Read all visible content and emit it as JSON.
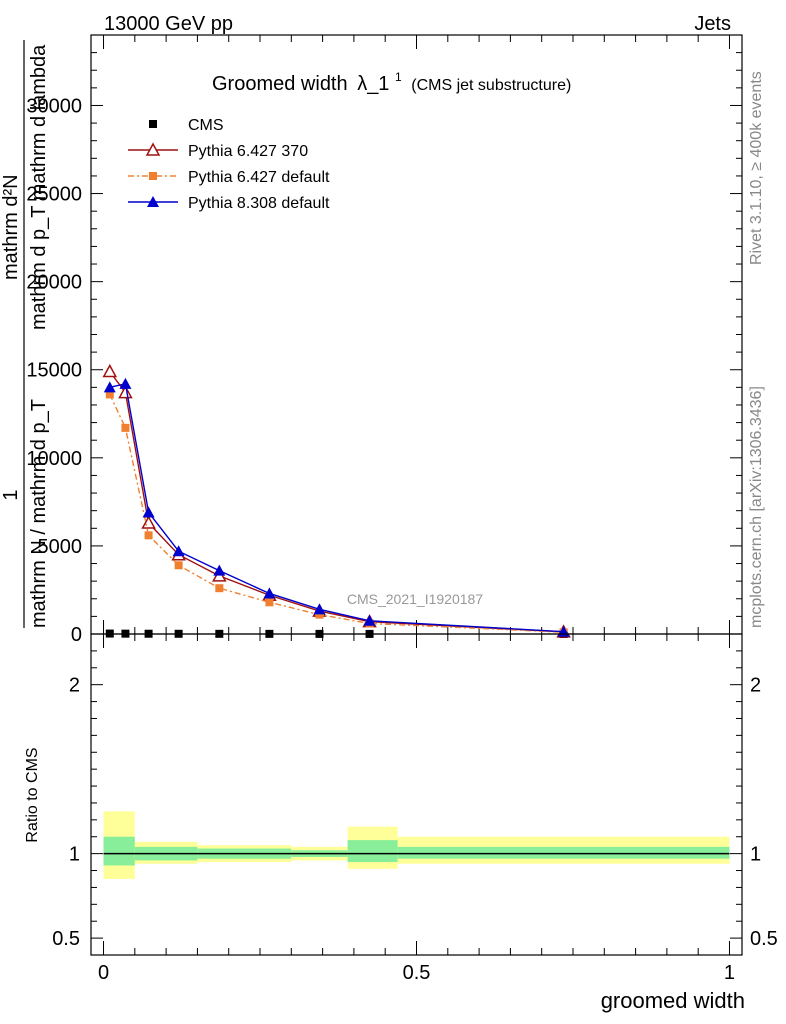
{
  "header": {
    "left": "13000 GeV pp",
    "right": "Jets"
  },
  "side_text": {
    "rivet": "Rivet 3.1.10, ≥ 400k events",
    "mcplots": "mcplots.cern.ch [arXiv:1306.3436]"
  },
  "watermark": "CMS_2021_I1920187",
  "colors": {
    "cms": "#000000",
    "py6_370": "#a01010",
    "py6_default": "#f08030",
    "py8_default": "#0000cc",
    "band_outer": "#ffff99",
    "band_inner": "#88ee99"
  },
  "chart_data": [
    {
      "type": "line",
      "title": "Groomed width λ_1¹",
      "title_main": "Groomed width",
      "title_symbol": "λ_1",
      "title_sup": "1",
      "title_note": "(CMS jet substructure)",
      "ylabel_numerator": "mathrm d²N",
      "ylabel_denominator": "mathrm d p_T mathrm d lambda",
      "ylabel_prefix": "1",
      "ylabel_norm": "mathrm N / mathrm d p_T",
      "xlim": [
        -0.02,
        1.02
      ],
      "ylim": [
        0,
        34000
      ],
      "yticks": [
        {
          "v": 0,
          "label": "0"
        },
        {
          "v": 5000,
          "label": "5000"
        },
        {
          "v": 10000,
          "label": "10000"
        },
        {
          "v": 15000,
          "label": "15000"
        },
        {
          "v": 20000,
          "label": "20000"
        },
        {
          "v": 25000,
          "label": "25000"
        },
        {
          "v": 30000,
          "label": "30000"
        }
      ],
      "x": [
        0.01,
        0.035,
        0.072,
        0.12,
        0.185,
        0.265,
        0.345,
        0.425,
        0.735
      ],
      "series": [
        {
          "name": "CMS",
          "key": "cms",
          "marker": "square",
          "values": [
            25,
            20,
            15,
            12,
            10,
            8,
            6,
            5,
            1
          ]
        },
        {
          "name": "Pythia 6.427 370",
          "key": "py6_370",
          "marker": "open-triangle",
          "values": [
            14900,
            13700,
            6300,
            4500,
            3300,
            2200,
            1300,
            700,
            120
          ]
        },
        {
          "name": "Pythia 6.427 default",
          "key": "py6_default",
          "marker": "filled-square",
          "values": [
            13600,
            11700,
            5600,
            3900,
            2600,
            1800,
            1100,
            600,
            100
          ]
        },
        {
          "name": "Pythia 8.308 default",
          "key": "py8_default",
          "marker": "filled-triangle",
          "values": [
            14000,
            14200,
            6900,
            4700,
            3600,
            2300,
            1400,
            750,
            130
          ]
        }
      ],
      "legend_position": "top-left"
    },
    {
      "type": "area",
      "ylabel": "Ratio to CMS",
      "xlabel": "groomed width",
      "xlim": [
        -0.02,
        1.02
      ],
      "ylim": [
        0.4,
        2.3
      ],
      "yticks": [
        {
          "v": 0.5,
          "label": "0.5"
        },
        {
          "v": 1,
          "label": "1"
        },
        {
          "v": 2,
          "label": "2"
        }
      ],
      "xticks": [
        {
          "v": 0,
          "label": "0"
        },
        {
          "v": 0.5,
          "label": "0.5"
        },
        {
          "v": 1,
          "label": "1"
        }
      ],
      "reference": 1,
      "bands": [
        {
          "x0": 0.0,
          "x1": 0.05,
          "outer": [
            0.85,
            1.25
          ],
          "inner": [
            0.93,
            1.1
          ]
        },
        {
          "x0": 0.05,
          "x1": 0.15,
          "outer": [
            0.94,
            1.07
          ],
          "inner": [
            0.96,
            1.04
          ]
        },
        {
          "x0": 0.15,
          "x1": 0.3,
          "outer": [
            0.95,
            1.05
          ],
          "inner": [
            0.97,
            1.03
          ]
        },
        {
          "x0": 0.3,
          "x1": 0.39,
          "outer": [
            0.96,
            1.04
          ],
          "inner": [
            0.98,
            1.02
          ]
        },
        {
          "x0": 0.39,
          "x1": 0.47,
          "outer": [
            0.91,
            1.16
          ],
          "inner": [
            0.95,
            1.08
          ]
        },
        {
          "x0": 0.47,
          "x1": 1.0,
          "outer": [
            0.94,
            1.1
          ],
          "inner": [
            0.97,
            1.04
          ]
        }
      ]
    }
  ]
}
